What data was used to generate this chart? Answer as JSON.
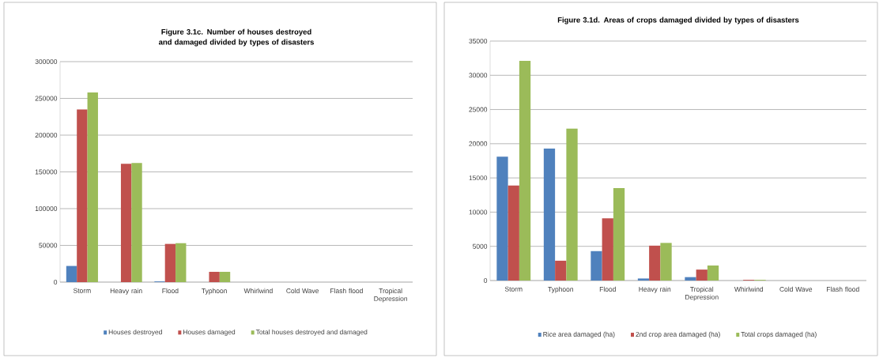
{
  "chart_data": [
    {
      "type": "bar",
      "title": "Figure  3.1c. Number of houses destroyed and damaged divided by types of disasters",
      "categories": [
        "Storm",
        "Heavy rain",
        "Flood",
        "Typhoon",
        "Whirlwind",
        "Cold Wave",
        "Flash flood",
        "Tropical Depression"
      ],
      "series": [
        {
          "name": "Houses destroyed",
          "color": "#4f81bd",
          "values": [
            22000,
            0,
            1000,
            0,
            0,
            0,
            0,
            0
          ]
        },
        {
          "name": "Houses damaged",
          "color": "#c0504d",
          "values": [
            235000,
            161000,
            52000,
            14000,
            0,
            0,
            0,
            0
          ]
        },
        {
          "name": "Total houses destroyed and damaged",
          "color": "#9bbb59",
          "values": [
            258000,
            162000,
            53000,
            14000,
            0,
            0,
            0,
            0
          ]
        }
      ],
      "ylim": [
        0,
        300000
      ],
      "yticks": [
        0,
        50000,
        100000,
        150000,
        200000,
        250000,
        300000
      ],
      "grid": "y",
      "legend": "bottom"
    },
    {
      "type": "bar",
      "title": "Figure 3.1d. Areas of crops damaged divided by types of disasters",
      "categories": [
        "Storm",
        "Typhoon",
        "Flood",
        "Heavy rain",
        "Tropical Depression",
        "Whirlwind",
        "Cold Wave",
        "Flash flood"
      ],
      "series": [
        {
          "name": "Rice area damaged (ha)",
          "color": "#4f81bd",
          "values": [
            18100,
            19300,
            4300,
            300,
            500,
            0,
            0,
            0
          ]
        },
        {
          "name": "2nd crop area damaged (ha)",
          "color": "#c0504d",
          "values": [
            13900,
            2900,
            9100,
            5100,
            1600,
            100,
            0,
            0
          ]
        },
        {
          "name": "Total crops damaged (ha)",
          "color": "#9bbb59",
          "values": [
            32100,
            22200,
            13500,
            5500,
            2200,
            100,
            0,
            0
          ]
        }
      ],
      "ylim": [
        0,
        35000
      ],
      "yticks": [
        0,
        5000,
        10000,
        15000,
        20000,
        25000,
        30000,
        35000
      ],
      "grid": "y",
      "legend": "bottom"
    }
  ]
}
